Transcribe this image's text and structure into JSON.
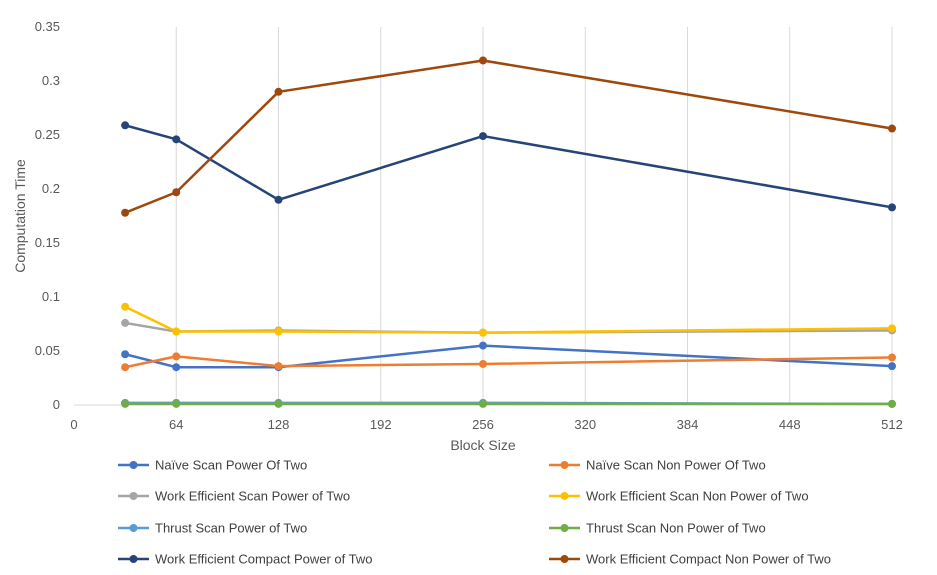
{
  "chart_data": {
    "type": "line",
    "title": "",
    "xlabel": "Block Size",
    "ylabel": "Computation Time",
    "xlim": [
      0,
      512
    ],
    "ylim": [
      0,
      0.35
    ],
    "xticks": [
      0,
      64,
      128,
      192,
      256,
      320,
      384,
      448,
      512
    ],
    "yticks": [
      0,
      0.05,
      0.1,
      0.15,
      0.2,
      0.25,
      0.3,
      0.35
    ],
    "ytick_labels": [
      "0",
      "0.05",
      "0.1",
      "0.15",
      "0.2",
      "0.25",
      "0.3",
      "0.35"
    ],
    "grid": "vertical",
    "legend_position": "bottom",
    "x": [
      32,
      64,
      128,
      256,
      512
    ],
    "series": [
      {
        "name": "Naïve Scan Power Of Two",
        "color": "#4472c4",
        "values": [
          0.047,
          0.035,
          0.035,
          0.055,
          0.036
        ]
      },
      {
        "name": "Naïve Scan Non Power Of Two",
        "color": "#ed7d31",
        "values": [
          0.035,
          0.045,
          0.036,
          0.038,
          0.044
        ]
      },
      {
        "name": "Work Efficient Scan Power of Two",
        "color": "#a5a5a5",
        "values": [
          0.076,
          0.068,
          0.069,
          0.067,
          0.069
        ]
      },
      {
        "name": "Work Efficient Scan Non Power of Two",
        "color": "#ffc000",
        "values": [
          0.091,
          0.068,
          0.068,
          0.067,
          0.071
        ]
      },
      {
        "name": "Thrust Scan Power of Two",
        "color": "#5b9bd5",
        "values": [
          0.002,
          0.002,
          0.002,
          0.002,
          0.001
        ]
      },
      {
        "name": "Thrust Scan Non Power of Two",
        "color": "#70ad47",
        "values": [
          0.001,
          0.001,
          0.001,
          0.001,
          0.001
        ]
      },
      {
        "name": "Work Efficient Compact Power of Two",
        "color": "#264478",
        "values": [
          0.259,
          0.246,
          0.19,
          0.249,
          0.183
        ]
      },
      {
        "name": "Work Efficient Compact Non Power of Two",
        "color": "#9e480e",
        "values": [
          0.178,
          0.197,
          0.29,
          0.319,
          0.256
        ]
      }
    ]
  }
}
